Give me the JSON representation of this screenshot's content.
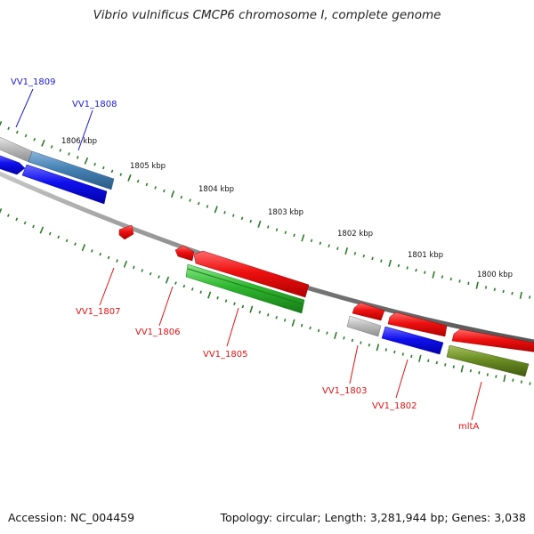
{
  "title": "Vibrio vulnificus CMCP6 chromosome I, complete genome",
  "footer": {
    "accession": "Accession: NC_004459",
    "summary": "Topology: circular; Length: 3,281,944 bp; Genes: 3,038"
  },
  "scale_labels": [
    "1806 kbp",
    "1805 kbp",
    "1804 kbp",
    "1803 kbp",
    "1802 kbp",
    "1801 kbp",
    "1800 kbp"
  ],
  "gene_labels": [
    {
      "text": "VV1_1809",
      "color": "#1a1acc"
    },
    {
      "text": "VV1_1808",
      "color": "#1a1acc"
    },
    {
      "text": "VV1_1807",
      "color": "#dd1111"
    },
    {
      "text": "VV1_1806",
      "color": "#dd1111"
    },
    {
      "text": "VV1_1805",
      "color": "#dd1111"
    },
    {
      "text": "VV1_1803",
      "color": "#dd1111"
    },
    {
      "text": "VV1_1802",
      "color": "#dd1111"
    },
    {
      "text": "mltA",
      "color": "#dd1111"
    }
  ],
  "colors": {
    "backbone": "#8a8a8a",
    "tick": "#2a7a2a",
    "forward_gene": "#ee1111",
    "reverse_gene": "#1111ee",
    "rna_gene": "#33bb33",
    "pseudo_gene": "#bbbbbb",
    "other_gene": "#6b8e23",
    "steel_gene": "#4682b4"
  }
}
